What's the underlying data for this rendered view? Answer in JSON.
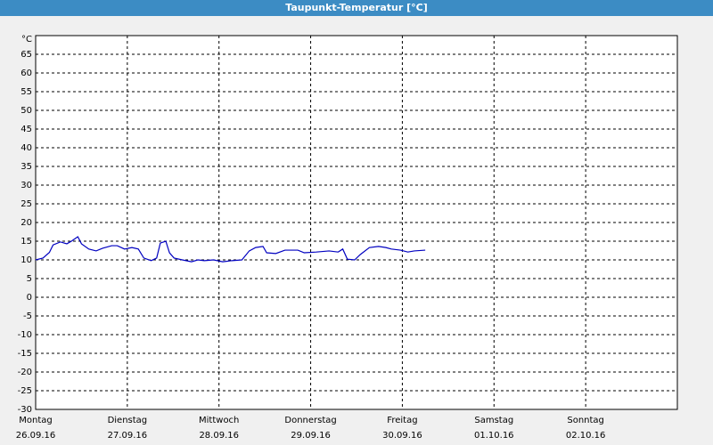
{
  "chart_data": {
    "type": "line",
    "title": "Taupunkt-Temperatur [°C]",
    "y_unit": "°C",
    "xlim": [
      0,
      7
    ],
    "xticks": [
      {
        "value": 0,
        "label": "Montag"
      },
      {
        "value": 1,
        "label": "Dienstag"
      },
      {
        "value": 2,
        "label": "Mittwoch"
      },
      {
        "value": 3,
        "label": "Donnerstag"
      },
      {
        "value": 4,
        "label": "Freitag"
      },
      {
        "value": 5,
        "label": "Samstag"
      },
      {
        "value": 6,
        "label": "Sonntag"
      }
    ],
    "xtick_dates": [
      "26.09.16",
      "27.09.16",
      "28.09.16",
      "29.09.16",
      "30.09.16",
      "01.10.16",
      "02.10.16"
    ],
    "ylim": [
      -30,
      70
    ],
    "yticks": [
      -30,
      -25,
      -20,
      -15,
      -10,
      -5,
      0,
      5,
      10,
      15,
      20,
      25,
      30,
      35,
      40,
      45,
      50,
      55,
      60,
      65
    ],
    "grid": true,
    "series": [
      {
        "color": "#0000c0",
        "x": [
          0,
          0.08,
          0.15,
          0.19,
          0.27,
          0.34,
          0.39,
          0.46,
          0.5,
          0.58,
          0.66,
          0.73,
          0.83,
          0.89,
          0.97,
          1.05,
          1.12,
          1.18,
          1.26,
          1.32,
          1.36,
          1.42,
          1.46,
          1.51,
          1.6,
          1.7,
          1.77,
          1.84,
          1.94,
          2.04,
          2.14,
          2.25,
          2.33,
          2.4,
          2.48,
          2.52,
          2.62,
          2.72,
          2.86,
          2.93,
          3.06,
          3.2,
          3.3,
          3.35,
          3.4,
          3.48,
          3.54,
          3.64,
          3.74,
          3.82,
          3.88,
          3.98,
          4.06,
          4.13,
          4.25
        ],
        "values": [
          10,
          10.5,
          12,
          14,
          14.8,
          14.3,
          15,
          16.2,
          14.3,
          12.9,
          12.4,
          13.1,
          13.8,
          13.8,
          12.9,
          13.3,
          12.9,
          10.5,
          9.8,
          10.5,
          14.5,
          15,
          11.9,
          10.5,
          10,
          9.5,
          10,
          9.8,
          10,
          9.5,
          9.8,
          10,
          12.4,
          13.3,
          13.6,
          11.9,
          11.7,
          12.6,
          12.6,
          11.9,
          12.1,
          12.4,
          12.1,
          12.9,
          10.2,
          10,
          11.4,
          13.3,
          13.6,
          13.3,
          12.9,
          12.6,
          12.1,
          12.4,
          12.6
        ]
      }
    ]
  }
}
